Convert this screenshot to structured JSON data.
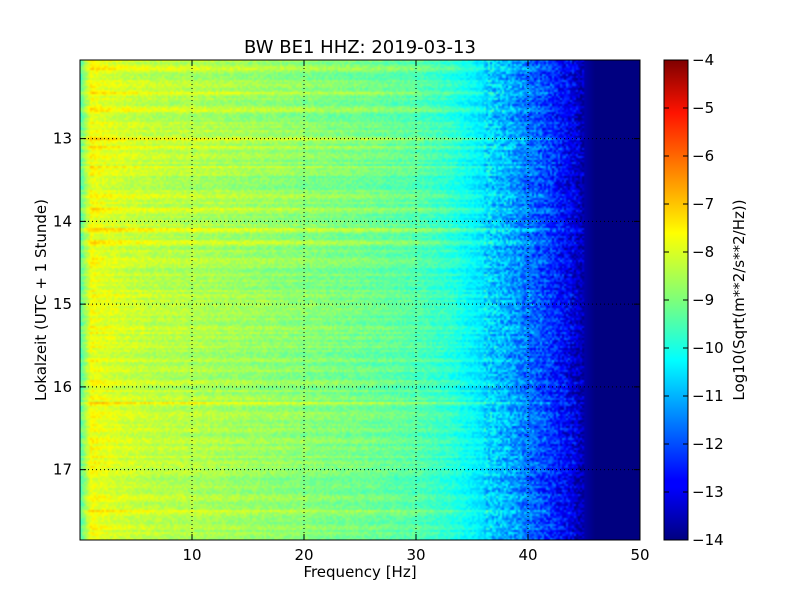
{
  "chart_data": {
    "type": "heatmap",
    "title": "BW BE1 HHZ: 2019-03-13",
    "xlabel": "Frequency [Hz]",
    "ylabel": "Lokalzeit (UTC + 1 Stunde)",
    "xlim": [
      0,
      50
    ],
    "ylim": [
      17.85,
      12.05
    ],
    "y_inverted": true,
    "x_ticks": [
      10,
      20,
      30,
      40,
      50
    ],
    "y_ticks": [
      13,
      14,
      15,
      16,
      17
    ],
    "grid": true,
    "colorbar": {
      "label": "Log10(Sqrt(m**2/s**2/Hz))",
      "range": [
        -14,
        -4
      ],
      "ticks": [
        -4,
        -5,
        -6,
        -7,
        -8,
        -9,
        -10,
        -11,
        -12,
        -13,
        -14
      ],
      "colormap": "jet"
    },
    "frequency_profile": {
      "frequency_hz": [
        0,
        1,
        2,
        4,
        7,
        10,
        15,
        20,
        25,
        30,
        33,
        36,
        38,
        40,
        42,
        44,
        45,
        46,
        50
      ],
      "level": [
        -9.5,
        -7.8,
        -8.0,
        -8.2,
        -8.4,
        -8.5,
        -8.7,
        -8.9,
        -9.1,
        -9.4,
        -9.8,
        -10.5,
        -11.0,
        -11.6,
        -12.2,
        -13.0,
        -13.6,
        -14.0,
        -14.0
      ]
    },
    "spectral_cutoff_hz": 45,
    "noise_bursts_time": [
      12.15,
      12.45,
      12.65,
      13.0,
      13.1,
      13.35,
      13.7,
      13.85,
      14.1,
      14.25,
      16.2,
      17.5
    ]
  }
}
